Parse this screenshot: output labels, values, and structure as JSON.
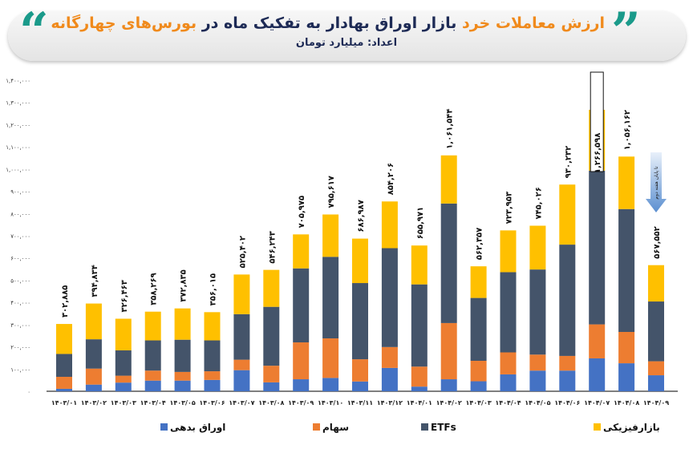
{
  "header": {
    "title_part1": "ارزش معاملات خرد",
    "title_part2": "بازار اوراق بهادار به تفکیک ماه در",
    "title_part3": "بورس‌های چهارگانه",
    "subtitle": "اعداد: میلیارد تومان",
    "quote_icon": "teal-quote-marks"
  },
  "chart_data": {
    "type": "bar",
    "stacked": true,
    "ylim": [
      0,
      1400000
    ],
    "grid": false,
    "legend_placement": "bottom",
    "y_tick_labels": [
      "۰",
      "۱۰۰,۰۰۰",
      "۲۰۰,۰۰۰",
      "۳۰۰,۰۰۰",
      "۴۰۰,۰۰۰",
      "۵۰۰,۰۰۰",
      "۶۰۰,۰۰۰",
      "۷۰۰,۰۰۰",
      "۸۰۰,۰۰۰",
      "۹۰۰,۰۰۰",
      "۱,۰۰۰,۰۰۰",
      "۱,۱۰۰,۰۰۰",
      "۱,۲۰۰,۰۰۰",
      "۱,۳۰۰,۰۰۰",
      "۱,۴۰۰,۰۰۰"
    ],
    "y_ticks": [
      0,
      100000,
      200000,
      300000,
      400000,
      500000,
      600000,
      700000,
      800000,
      900000,
      1000000,
      1100000,
      1200000,
      1300000,
      1400000
    ],
    "categories": [
      "۱۴۰۳/۰۱",
      "۱۴۰۳/۰۲",
      "۱۴۰۳/۰۳",
      "۱۴۰۳/۰۴",
      "۱۴۰۳/۰۵",
      "۱۴۰۳/۰۶",
      "۱۴۰۳/۰۷",
      "۱۴۰۳/۰۸",
      "۱۴۰۳/۰۹",
      "۱۴۰۳/۱۰",
      "۱۴۰۳/۱۱",
      "۱۴۰۳/۱۲",
      "۱۴۰۴/۰۱",
      "۱۴۰۴/۰۲",
      "۱۴۰۴/۰۳",
      "۱۴۰۴/۰۴",
      "۱۴۰۴/۰۵",
      "۱۴۰۴/۰۶",
      "۱۴۰۴/۰۷",
      "۱۴۰۴/۰۸",
      "۱۴۰۴/۰۹"
    ],
    "series": [
      {
        "name": "اوراق بدهی",
        "color": "#4472C4",
        "values": [
          11000,
          30000,
          39000,
          48000,
          48000,
          51000,
          95000,
          40000,
          54000,
          60000,
          44000,
          105000,
          21000,
          54000,
          45000,
          76000,
          93000,
          93000,
          148000,
          126000,
          72000
        ]
      },
      {
        "name": "سهام",
        "color": "#ED7D31",
        "values": [
          54000,
          72000,
          31000,
          45000,
          39000,
          39000,
          47000,
          75000,
          166000,
          178000,
          100000,
          94000,
          90000,
          253000,
          92000,
          99000,
          72000,
          66000,
          153000,
          141000,
          63000
        ]
      },
      {
        "name": "ETFs",
        "color": "#44546A",
        "values": [
          103000,
          132000,
          114000,
          136000,
          145000,
          139000,
          205000,
          265000,
          333000,
          367000,
          343000,
          445000,
          370000,
          538000,
          283000,
          361000,
          383000,
          501000,
          692000,
          553000,
          269000
        ]
      },
      {
        "name": "بازارفیزیکی",
        "color": "#FFC000",
        "values": [
          134885,
          160834,
          142463,
          129269,
          140835,
          127015,
          178402,
          166243,
          152975,
          190617,
          199987,
          210206,
          174971,
          216544,
          142357,
          187953,
          197026,
          270232,
          273598,
          236162,
          163552
        ]
      }
    ],
    "totals": [
      302885,
      394834,
      326463,
      358269,
      372835,
      356015,
      525402,
      546243,
      705975,
      795617,
      686987,
      854206,
      655971,
      1061544,
      562357,
      723953,
      745026,
      930232,
      1266598,
      1056162,
      567552
    ],
    "total_labels": [
      "۳۰۲,۸۸۵",
      "۳۹۴,۸۳۴",
      "۳۲۶,۴۶۳",
      "۳۵۸,۲۶۹",
      "۳۷۲,۸۳۵",
      "۳۵۶,۰۱۵",
      "۵۲۵,۴۰۲",
      "۵۴۶,۲۴۳",
      "۷۰۵,۹۷۵",
      "۷۹۵,۶۱۷",
      "۶۸۶,۹۸۷",
      "۸۵۴,۲۰۶",
      "۶۵۵,۹۷۱",
      "۱,۰۶۱,۵۴۴",
      "۵۶۲,۳۵۷",
      "۷۲۳,۹۵۳",
      "۷۴۵,۰۲۶",
      "۹۳۰,۲۳۲",
      "۱,۲۶۶,۵۹۸",
      "۱,۰۵۶,۱۶۲",
      "۵۶۷,۵۵۲"
    ],
    "highlighted_index": 18,
    "annotation": {
      "text": "تا پایان هفته دوم",
      "target_index": 20,
      "icon": "down-arrow-icon"
    }
  }
}
